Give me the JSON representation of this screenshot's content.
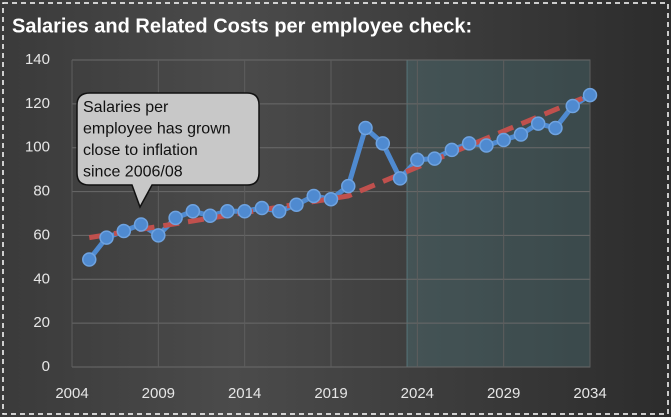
{
  "chart_data": {
    "type": "line",
    "title": "Salaries and Related Costs per employee check:",
    "x": [
      2005,
      2006,
      2007,
      2008,
      2009,
      2010,
      2011,
      2012,
      2013,
      2014,
      2015,
      2016,
      2017,
      2018,
      2019,
      2020,
      2021,
      2022,
      2023,
      2024,
      2025,
      2026,
      2027,
      2028,
      2029,
      2030,
      2031,
      2032,
      2033,
      2034
    ],
    "series": [
      {
        "color": "#4f8ad0",
        "values": [
          49,
          59,
          62,
          65,
          60,
          68,
          71,
          69,
          71,
          71,
          72.5,
          71,
          74,
          78,
          76.5,
          82.5,
          109,
          102,
          86,
          94.5,
          95,
          99,
          102,
          101,
          103.5,
          106,
          111,
          109,
          119,
          124
        ]
      }
    ],
    "trend": {
      "color": "#c0504d",
      "x": [
        2005,
        2020,
        2034
      ],
      "values": [
        59,
        78,
        124
      ]
    },
    "highlight_x": [
      2023.4,
      2034
    ],
    "xlim": [
      2004,
      2034
    ],
    "xticks": [
      2004,
      2009,
      2014,
      2019,
      2024,
      2029,
      2034
    ],
    "ylim": [
      0,
      140
    ],
    "yticks": [
      0,
      20,
      40,
      60,
      80,
      100,
      120,
      140
    ],
    "grid": true,
    "annotation": {
      "lines": [
        "Salaries per",
        "employee has grown",
        "close to inflation",
        "since 2006/08"
      ]
    }
  }
}
